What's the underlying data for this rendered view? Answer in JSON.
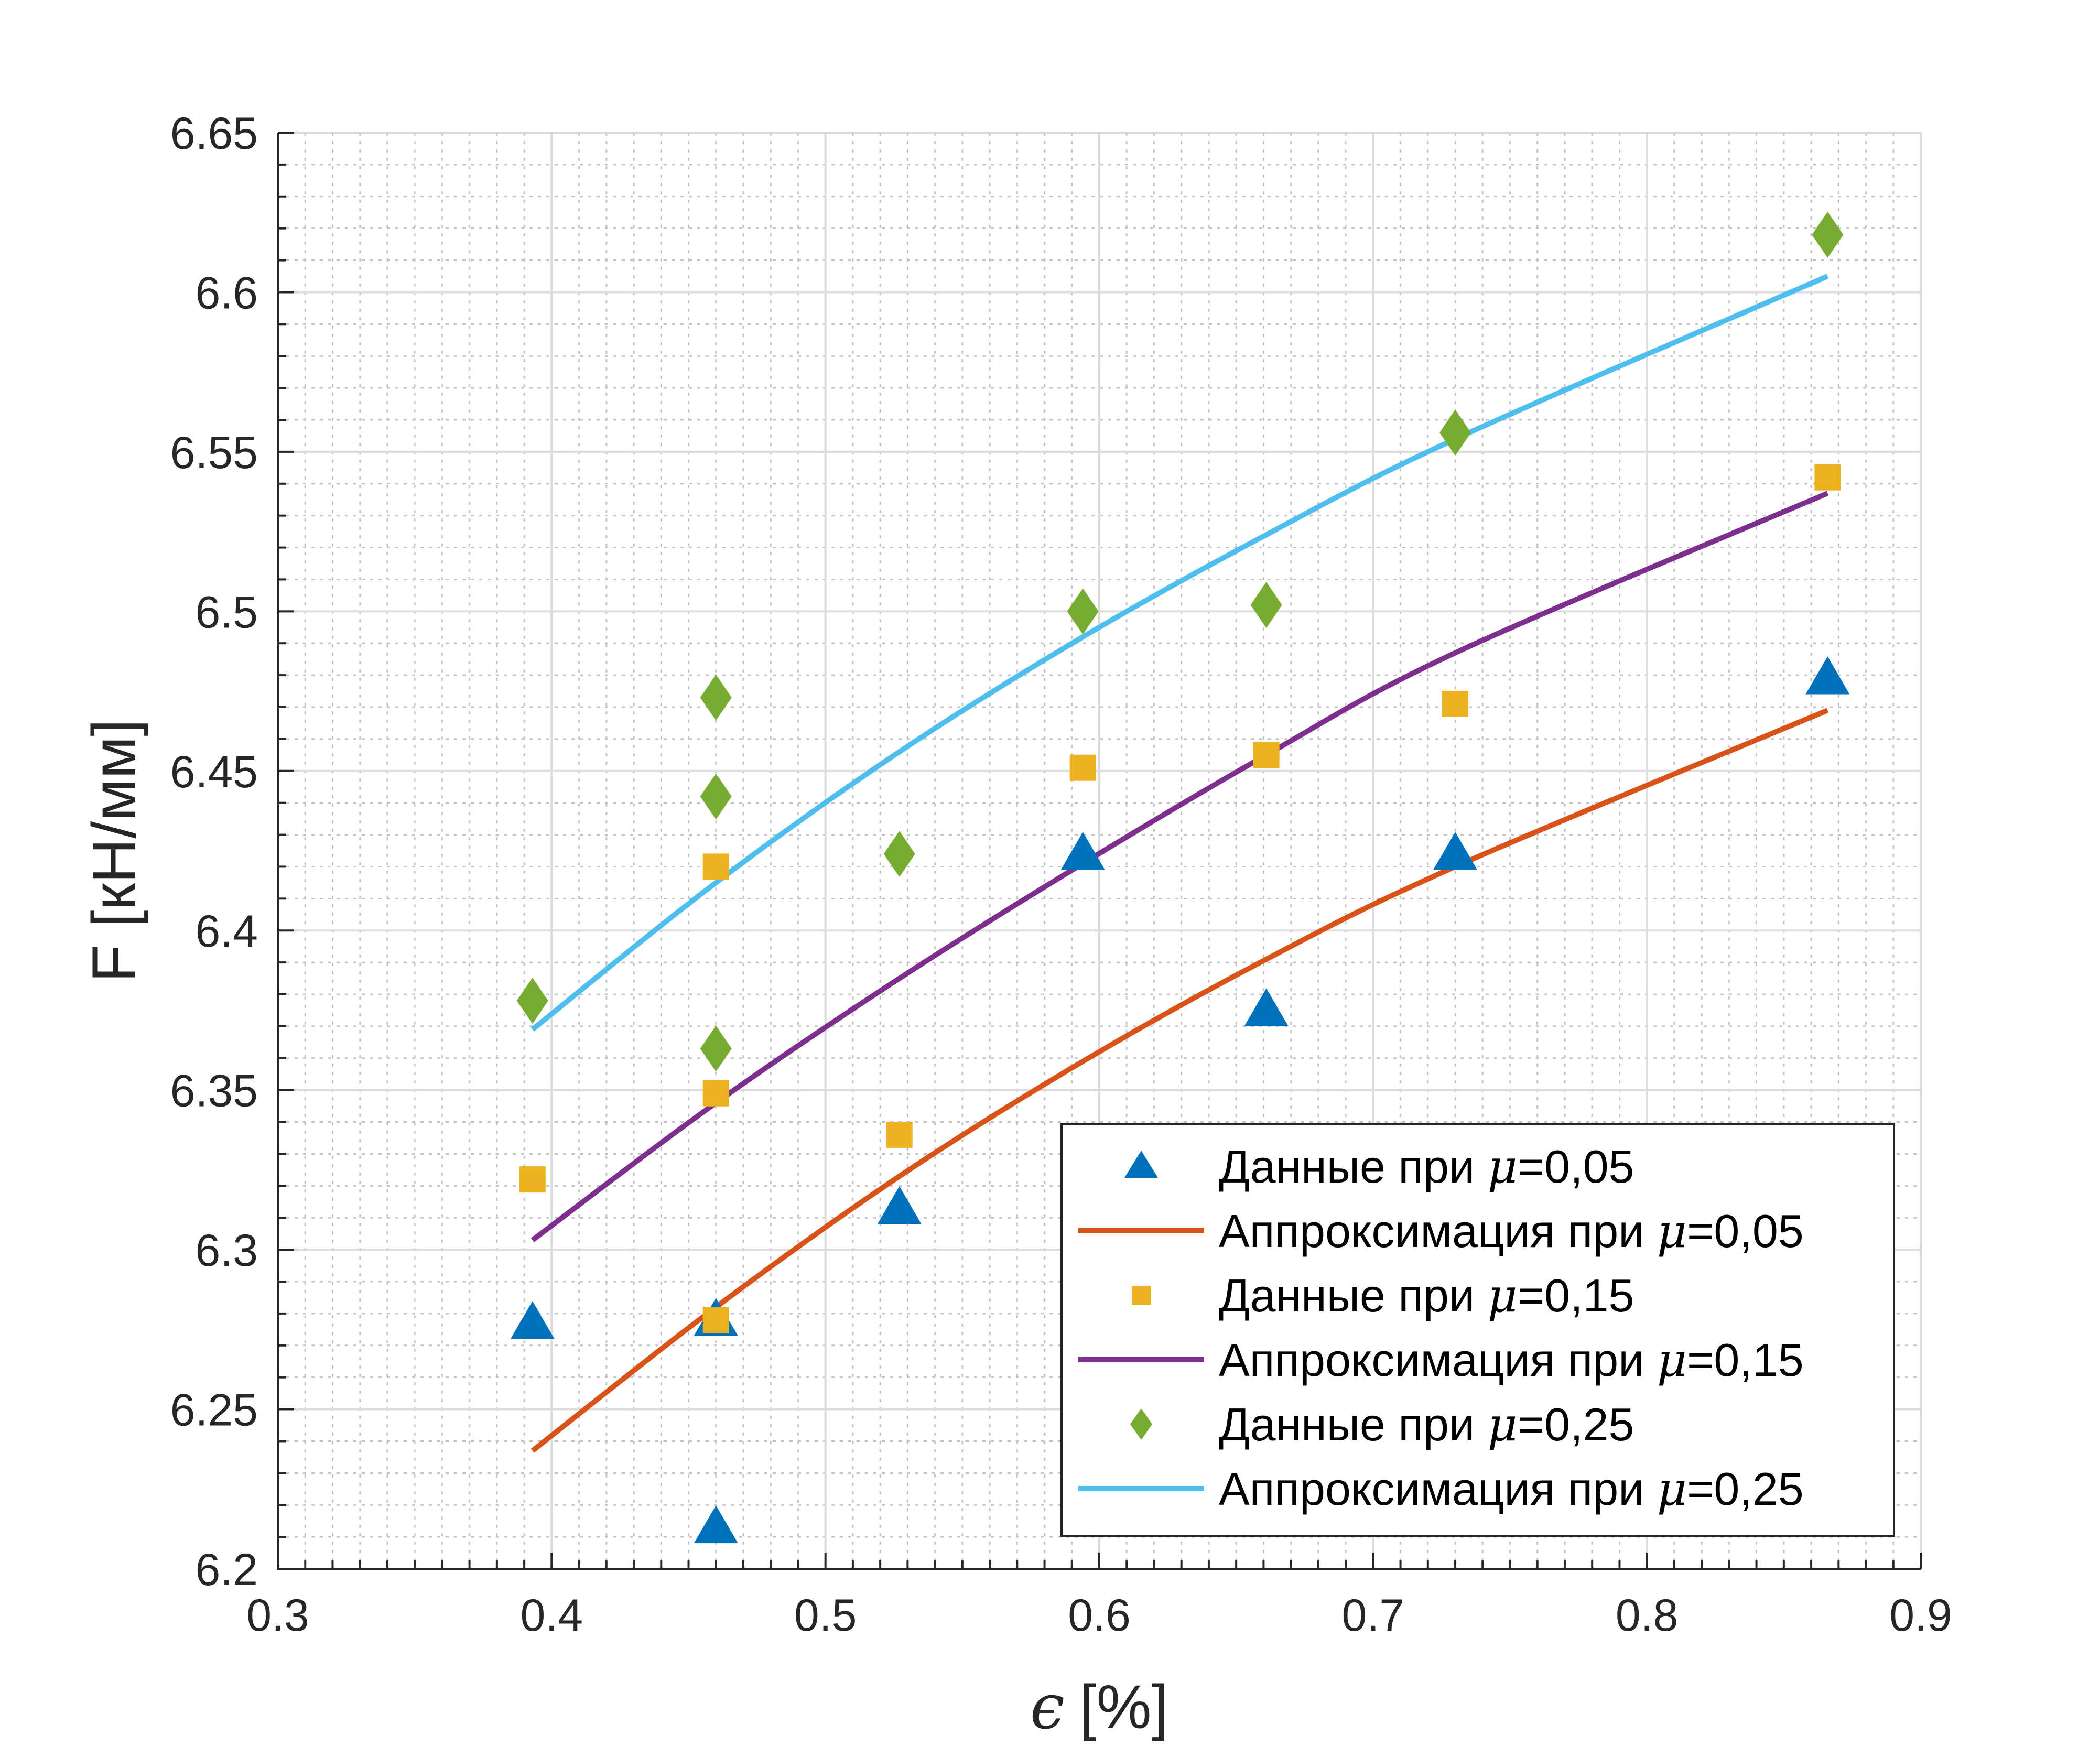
{
  "chart_data": {
    "type": "scatter",
    "title": "",
    "xlabel": "[%]",
    "xlabel_symbol": "ϵ",
    "ylabel": "F [кН/мм]",
    "xlim": [
      0.3,
      0.9
    ],
    "ylim": [
      6.2,
      6.65
    ],
    "xticks": [
      0.3,
      0.4,
      0.5,
      0.6,
      0.7,
      0.8,
      0.9
    ],
    "yticks": [
      6.2,
      6.25,
      6.3,
      6.35,
      6.4,
      6.45,
      6.5,
      6.55,
      6.6,
      6.65
    ],
    "xtick_labels": [
      "0.3",
      "0.4",
      "0.5",
      "0.6",
      "0.7",
      "0.8",
      "0.9"
    ],
    "ytick_labels": [
      "6.2",
      "6.25",
      "6.3",
      "6.35",
      "6.4",
      "6.45",
      "6.5",
      "6.55",
      "6.6",
      "6.65"
    ],
    "grid": true,
    "minor_grid": true,
    "legend_position": "bottom-right",
    "mu_symbol": "μ",
    "series": [
      {
        "name": "Данные при μ=0,05",
        "legend_prefix": "Данные при ",
        "legend_suffix": "=0,05",
        "kind": "scatter",
        "marker": "triangle",
        "color": "#0072BD",
        "x": [
          0.393,
          0.46,
          0.46,
          0.527,
          0.594,
          0.661,
          0.73,
          0.866
        ],
        "y": [
          6.277,
          6.278,
          6.213,
          6.313,
          6.424,
          6.375,
          6.424,
          6.479
        ]
      },
      {
        "name": "Аппроксимация при μ=0,05",
        "legend_prefix": "Аппроксимация при ",
        "legend_suffix": "=0,05",
        "kind": "line",
        "color": "#D95319",
        "x": [
          0.393,
          0.46,
          0.527,
          0.594,
          0.661,
          0.73,
          0.866
        ],
        "y": [
          6.237,
          6.282,
          6.323,
          6.359,
          6.391,
          6.42,
          6.469
        ]
      },
      {
        "name": "Данные при μ=0,15",
        "legend_prefix": "Данные при ",
        "legend_suffix": "=0,15",
        "kind": "scatter",
        "marker": "square",
        "color": "#EDB120",
        "x": [
          0.393,
          0.46,
          0.46,
          0.46,
          0.527,
          0.594,
          0.661,
          0.73,
          0.866
        ],
        "y": [
          6.322,
          6.42,
          6.349,
          6.278,
          6.336,
          6.451,
          6.455,
          6.471,
          6.542
        ]
      },
      {
        "name": "Аппроксимация при μ=0,15",
        "legend_prefix": "Аппроксимация при ",
        "legend_suffix": "=0,15",
        "kind": "line",
        "color": "#7E2F8E",
        "x": [
          0.393,
          0.46,
          0.527,
          0.594,
          0.661,
          0.73,
          0.866
        ],
        "y": [
          6.303,
          6.346,
          6.385,
          6.421,
          6.455,
          6.487,
          6.537
        ]
      },
      {
        "name": "Данные при μ=0,25",
        "legend_prefix": "Данные при ",
        "legend_suffix": "=0,25",
        "kind": "scatter",
        "marker": "diamond",
        "color": "#77AC30",
        "x": [
          0.393,
          0.46,
          0.46,
          0.46,
          0.527,
          0.594,
          0.661,
          0.73,
          0.866
        ],
        "y": [
          6.378,
          6.473,
          6.442,
          6.363,
          6.424,
          6.5,
          6.502,
          6.556,
          6.618
        ]
      },
      {
        "name": "Аппроксимация при μ=0,25",
        "legend_prefix": "Аппроксимация при ",
        "legend_suffix": "=0,25",
        "kind": "line",
        "color": "#4DBEEE",
        "x": [
          0.393,
          0.46,
          0.527,
          0.594,
          0.661,
          0.73,
          0.866
        ],
        "y": [
          6.369,
          6.415,
          6.456,
          6.492,
          6.524,
          6.554,
          6.605
        ]
      }
    ]
  }
}
